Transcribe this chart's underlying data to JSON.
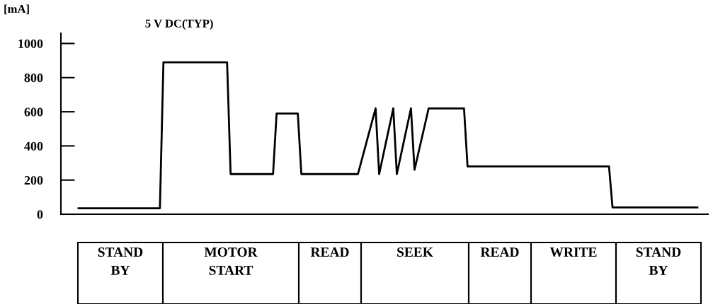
{
  "chart_data": {
    "type": "line",
    "title": "5 V DC(TYP)",
    "ylabel": "[mA]",
    "categories": [
      null,
      null,
      null,
      null,
      null,
      null,
      null,
      null,
      null,
      null,
      null,
      null,
      null,
      null,
      null,
      null,
      null,
      null,
      null,
      null,
      null,
      null,
      null,
      null,
      null,
      null,
      null,
      null,
      null,
      null,
      null,
      null,
      null,
      null,
      null,
      null,
      null,
      null,
      null,
      null,
      null,
      null,
      null,
      null,
      null,
      null,
      null,
      null,
      null,
      null,
      null,
      null,
      null,
      null,
      null,
      null,
      null,
      null,
      null,
      null,
      null,
      null,
      null,
      null,
      null,
      null,
      null,
      null,
      null,
      null,
      null,
      null,
      null,
      null,
      null,
      null,
      null,
      null,
      null,
      null,
      null,
      null,
      null,
      null,
      null,
      null,
      null,
      null,
      null,
      null,
      null,
      null,
      null,
      null,
      null,
      null,
      null,
      null,
      null,
      null,
      null,
      null,
      null,
      null,
      null,
      null,
      null,
      null,
      null,
      null,
      null,
      null,
      null,
      null,
      null,
      null,
      null,
      null,
      null,
      null,
      null,
      null,
      null,
      null,
      null,
      null,
      null,
      null,
      null,
      null,
      null,
      null,
      null,
      null,
      null,
      null,
      null,
      null,
      null,
      null,
      null,
      null,
      null,
      null,
      null,
      null,
      null,
      null,
      null,
      null,
      null,
      null,
      null,
      null,
      null,
      null,
      null,
      null,
      null,
      null,
      null,
      null,
      null,
      null,
      null,
      null,
      null,
      null,
      null,
      null,
      null,
      null,
      null,
      null,
      null,
      null
    ],
    "series": [
      {
        "color": "#000000",
        "values": [
          35,
          35,
          35,
          35,
          35,
          35,
          35,
          35,
          35,
          35,
          35,
          35,
          35,
          35,
          35,
          35,
          35,
          35,
          35,
          35,
          35,
          35,
          35,
          35,
          890,
          890,
          890,
          890,
          890,
          890,
          890,
          890,
          890,
          890,
          890,
          890,
          890,
          890,
          890,
          890,
          890,
          890,
          890,
          235,
          235,
          235,
          235,
          235,
          235,
          235,
          235,
          235,
          235,
          235,
          235,
          235,
          590,
          590,
          590,
          590,
          590,
          590,
          590,
          235,
          235,
          235,
          235,
          235,
          235,
          235,
          235,
          235,
          235,
          235,
          235,
          235,
          235,
          235,
          235,
          235,
          312,
          389,
          466,
          543,
          620,
          235,
          331,
          428,
          524,
          620,
          235,
          331,
          428,
          524,
          620,
          260,
          350,
          440,
          530,
          620,
          620,
          620,
          620,
          620,
          620,
          620,
          620,
          620,
          620,
          620,
          280,
          280,
          280,
          280,
          280,
          280,
          280,
          280,
          280,
          280,
          280,
          280,
          280,
          280,
          280,
          280,
          280,
          280,
          280,
          280,
          280,
          280,
          280,
          280,
          280,
          280,
          280,
          280,
          280,
          280,
          280,
          280,
          280,
          280,
          280,
          280,
          280,
          280,
          280,
          280,
          280,
          40,
          40,
          40,
          40,
          40,
          40,
          40,
          40,
          40,
          40,
          40,
          40,
          40,
          40,
          40,
          40,
          40,
          40,
          40,
          40,
          40,
          40,
          40,
          40,
          40
        ]
      }
    ],
    "ylim": [
      0,
      1060
    ],
    "yticks": [
      0,
      200,
      400,
      600,
      800,
      1000
    ],
    "tick_labels": "y",
    "grid": false,
    "marker": "none",
    "line_style": "solid",
    "annotations": [
      "STAND\nBY",
      "MOTOR\nSTART",
      "READ",
      "SEEK",
      "READ",
      "WRITE",
      "STAND\nBY"
    ]
  }
}
